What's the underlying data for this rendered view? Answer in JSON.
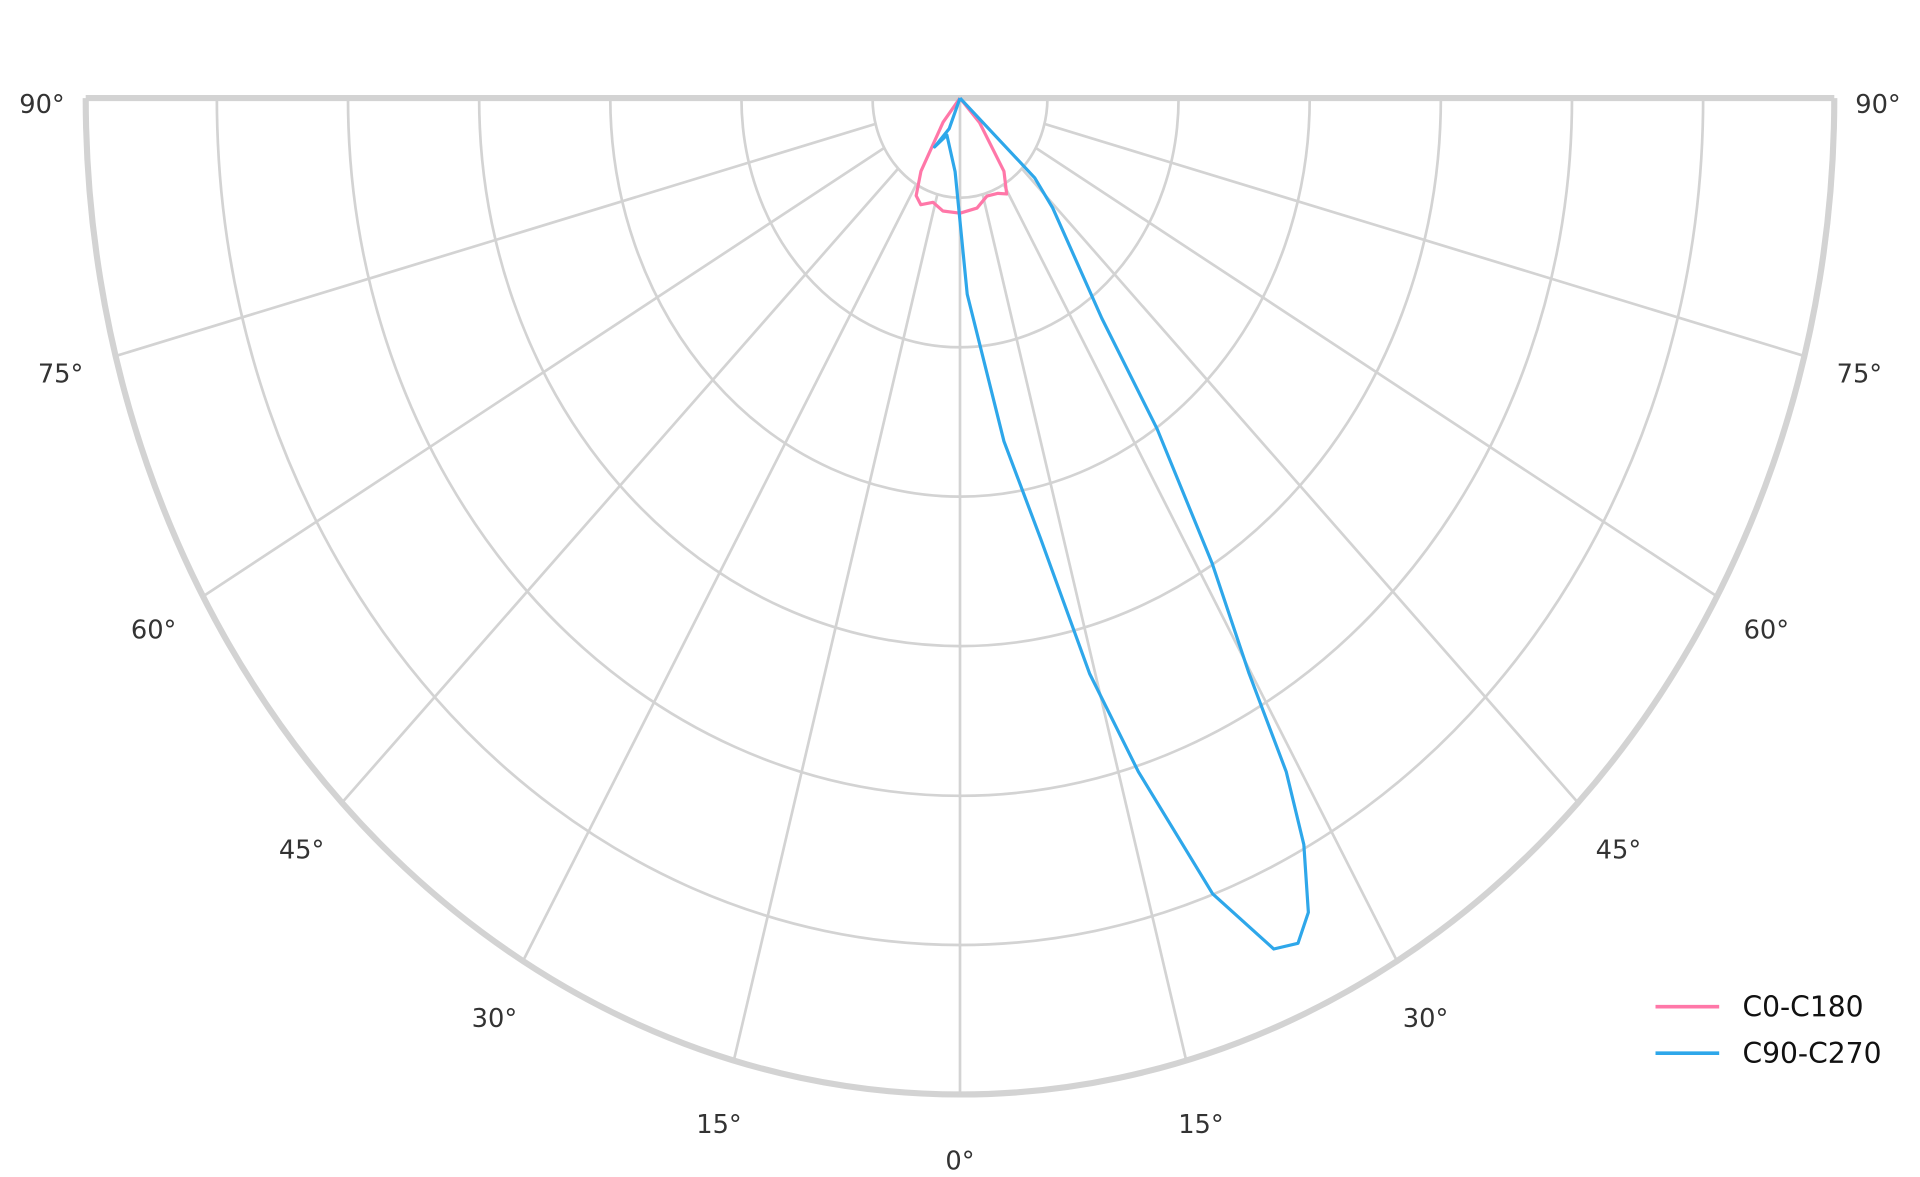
{
  "chart_data": {
    "type": "polar",
    "title": "",
    "angle_unit": "degrees from nadir (negative = left half)",
    "angle_ticks": [
      "0°",
      "15°",
      "30°",
      "45°",
      "60°",
      "75°",
      "90°"
    ],
    "angle_tick_values": [
      0,
      15,
      30,
      45,
      60,
      75,
      90
    ],
    "radial_rings": [
      0.1,
      0.25,
      0.4,
      0.55,
      0.7,
      0.85,
      1.0
    ],
    "radial_labels_shown": false,
    "grid": true,
    "legend_position": "bottom-right",
    "series": [
      {
        "name": "C0-C180",
        "color": "#ff77a8",
        "points": [
          [
            0,
            0
          ],
          [
            -38.6,
            0.031
          ],
          [
            -31.3,
            0.086
          ],
          [
            -27.1,
            0.11
          ],
          [
            -22.7,
            0.116
          ],
          [
            -16.4,
            0.109
          ],
          [
            -9.8,
            0.115
          ],
          [
            0,
            0.1155
          ],
          [
            10.0,
            0.112
          ],
          [
            17.4,
            0.103
          ],
          [
            24.4,
            0.105
          ],
          [
            29.0,
            0.11
          ],
          [
            34.4,
            0.089
          ],
          [
            42.3,
            0.033
          ],
          [
            0,
            0
          ]
        ]
      },
      {
        "name": "C90-C270",
        "color": "#2ea7ea",
        "points": [
          [
            0,
            0
          ],
          [
            -22,
            0.033
          ],
          [
            -30.7,
            0.057
          ],
          [
            -22,
            0.04
          ],
          [
            -4.3,
            0.074
          ],
          [
            2.4,
            0.197
          ],
          [
            8.3,
            0.348
          ],
          [
            11.8,
            0.452
          ],
          [
            14.4,
            0.596
          ],
          [
            16.8,
            0.706
          ],
          [
            19.9,
            0.849
          ],
          [
            22.8,
            0.926
          ],
          [
            24.5,
            0.932
          ],
          [
            26.0,
            0.909
          ],
          [
            27.7,
            0.846
          ],
          [
            28.9,
            0.772
          ],
          [
            29.8,
            0.665
          ],
          [
            31.7,
            0.549
          ],
          [
            34.2,
            0.401
          ],
          [
            36.3,
            0.274
          ],
          [
            43.9,
            0.153
          ],
          [
            46.9,
            0.117
          ],
          [
            0,
            0
          ]
        ]
      }
    ]
  }
}
